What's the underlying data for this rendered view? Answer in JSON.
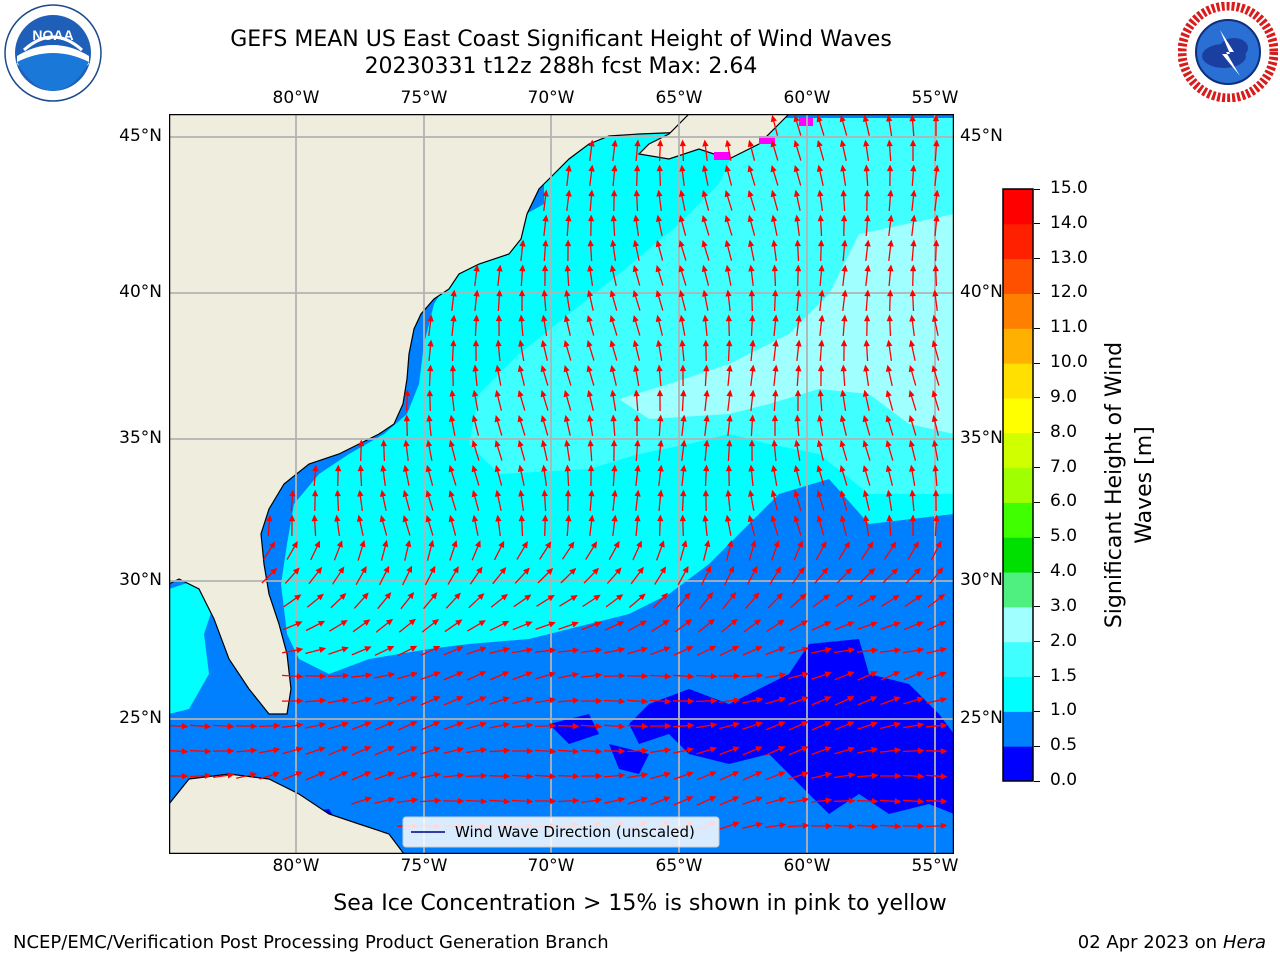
{
  "title": {
    "line1": "GEFS MEAN US East Coast Significant Height of Wind Waves",
    "line2": "20230331 t12z 288h fcst   Max: 2.64"
  },
  "logos": {
    "left": {
      "icon": "noaa-logo",
      "text": "NOAA",
      "ring_text": "NATIONAL OCEANIC AND ATMOSPHERIC ADMINISTRATION · U.S. DEPARTMENT OF COMMERCE"
    },
    "right": {
      "icon": "nws-logo",
      "ring_text": "NATIONAL WEATHER SERVICE"
    }
  },
  "map": {
    "lon_labels": [
      "80°W",
      "75°W",
      "70°W",
      "65°W",
      "60°W",
      "55°W"
    ],
    "lat_labels": [
      "45°N",
      "40°N",
      "35°N",
      "30°N",
      "25°N"
    ],
    "legend": "Wind Wave Direction (unscaled)",
    "colors": {
      "land": "#efedde",
      "grid": "#b3b3b3",
      "arrow": "#ff0000",
      "ice": "#ff00ff"
    }
  },
  "colorbar": {
    "title": "Significant Height of Wind Waves [m]",
    "ticks": [
      "0.0",
      "0.5",
      "1.0",
      "1.5",
      "2.0",
      "3.0",
      "4.0",
      "5.0",
      "6.0",
      "7.0",
      "8.0",
      "9.0",
      "10.0",
      "11.0",
      "12.0",
      "13.0",
      "14.0",
      "15.0"
    ],
    "colors": [
      "#0000ff",
      "#0080ff",
      "#00ffff",
      "#40ffff",
      "#a0ffff",
      "#50f080",
      "#00e000",
      "#40ff00",
      "#a0ff00",
      "#d0ff00",
      "#ffff00",
      "#ffe000",
      "#ffb000",
      "#ff8000",
      "#ff5000",
      "#ff2000",
      "#ff0000"
    ]
  },
  "note": "Sea Ice Concentration > 15% is shown in pink to yellow",
  "footer": {
    "left": "NCEP/EMC/Verification Post Processing Product Generation Branch",
    "date": "02 Apr 2023 on ",
    "host": "Hera"
  }
}
